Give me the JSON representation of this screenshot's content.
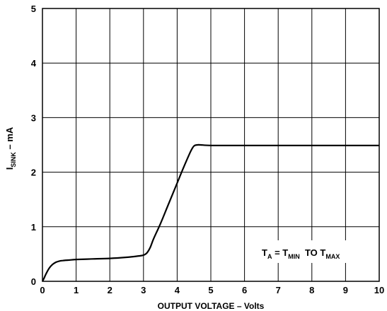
{
  "chart_data": {
    "type": "line",
    "title": "",
    "xlabel": "OUTPUT VOLTAGE – Volts",
    "ylabel": {
      "main": "I",
      "sub": "SINK",
      "rest": " – mA"
    },
    "xlim": [
      0,
      10
    ],
    "ylim": [
      0,
      5
    ],
    "x_ticks": [
      "0",
      "1",
      "2",
      "3",
      "4",
      "5",
      "6",
      "7",
      "8",
      "9",
      "10"
    ],
    "y_ticks": [
      "0",
      "1",
      "2",
      "3",
      "4",
      "5"
    ],
    "grid": true,
    "annotation": {
      "t": "T",
      "t_sub": "A",
      "eq": " = T",
      "min": "MIN",
      "to": "  TO T",
      "max": "MAX"
    },
    "series": [
      {
        "x": [
          0,
          0.05,
          0.1,
          0.2,
          0.3,
          0.4,
          0.5,
          0.6,
          0.8,
          1.0,
          1.5,
          2.0,
          2.5,
          2.8,
          3.0,
          3.1,
          3.2,
          3.3,
          3.5,
          3.7,
          4.0,
          4.2,
          4.4,
          4.5,
          4.6,
          4.7,
          5.0,
          6.0,
          7.0,
          8.0,
          9.0,
          10.0
        ],
        "y": [
          0,
          0.06,
          0.13,
          0.24,
          0.31,
          0.35,
          0.37,
          0.38,
          0.39,
          0.4,
          0.41,
          0.42,
          0.44,
          0.46,
          0.48,
          0.52,
          0.62,
          0.78,
          1.05,
          1.35,
          1.8,
          2.1,
          2.38,
          2.48,
          2.5,
          2.5,
          2.49,
          2.49,
          2.49,
          2.49,
          2.49,
          2.49
        ],
        "color": "#000000"
      }
    ]
  }
}
